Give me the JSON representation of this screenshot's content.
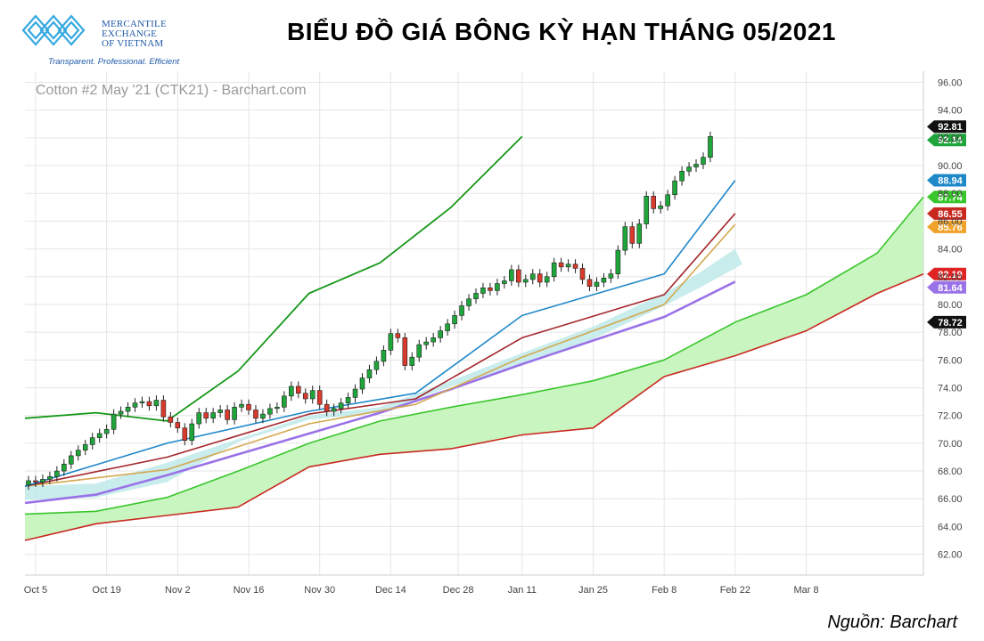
{
  "header": {
    "logo_line1": "MERCANTILE",
    "logo_line2": "EXCHANGE",
    "logo_line3": "OF VIETNAM",
    "logo_tagline": "Transparent. Professional. Efficient",
    "title": "BIỂU ĐỒ GIÁ BÔNG KỲ HẠN THÁNG 05/2021"
  },
  "source": "Nguồn: Barchart",
  "colors": {
    "up": "#1fa63a",
    "down": "#d93a2b",
    "band_fill": "#bfe9ea",
    "cloud_fill": "#c9f5c0",
    "ema_fast": "#1f88c9",
    "ema_mid": "#a3262b",
    "ema_slow": "#d4a84f",
    "sma_long": "#9a72e8",
    "span_a": "#39c62c",
    "span_b": "#c9281f",
    "lag": "#159818"
  },
  "chart_data": {
    "type": "candlestick",
    "title": "Cotton #2 May '21 (CTK21) - Barchart.com",
    "ylim": [
      60.5,
      96.8
    ],
    "y_ticks": [
      "96.00",
      "94.00",
      "92.00",
      "90.00",
      "88.00",
      "86.00",
      "84.00",
      "82.00",
      "80.00",
      "78.00",
      "76.00",
      "74.00",
      "72.00",
      "70.00",
      "68.00",
      "66.00",
      "64.00",
      "62.00"
    ],
    "x_ticks": [
      {
        "label": "Oct 5",
        "t": 1.5
      },
      {
        "label": "Oct 19",
        "t": 11.5
      },
      {
        "label": "Nov 2",
        "t": 21.5
      },
      {
        "label": "Nov 16",
        "t": 31.5
      },
      {
        "label": "Nov 30",
        "t": 41.5
      },
      {
        "label": "Dec 14",
        "t": 51.5
      },
      {
        "label": "Dec 28",
        "t": 61
      },
      {
        "label": "Jan 11",
        "t": 70
      },
      {
        "label": "Jan 25",
        "t": 80
      },
      {
        "label": "Feb 8",
        "t": 90
      },
      {
        "label": "Feb 22",
        "t": 100
      },
      {
        "label": "Mar 8",
        "t": 110
      }
    ],
    "t_range": [
      0,
      126.5
    ],
    "closes": [
      67.3,
      67.2,
      67.4,
      67.6,
      68.0,
      68.5,
      69.1,
      69.5,
      69.9,
      70.4,
      70.7,
      71.0,
      72.1,
      72.3,
      72.6,
      72.9,
      73.0,
      72.7,
      73.1,
      71.9,
      71.5,
      71.1,
      70.2,
      71.4,
      72.2,
      71.8,
      72.2,
      72.4,
      71.7,
      72.6,
      72.8,
      72.4,
      71.8,
      72.1,
      72.5,
      72.6,
      73.4,
      74.1,
      73.6,
      73.2,
      73.8,
      72.8,
      72.3,
      72.5,
      72.9,
      73.3,
      73.9,
      74.7,
      75.3,
      75.9,
      76.7,
      77.9,
      77.6,
      75.6,
      76.2,
      77.1,
      77.3,
      77.6,
      78.1,
      78.6,
      79.2,
      79.9,
      80.4,
      80.8,
      81.2,
      81.0,
      81.5,
      81.7,
      82.5,
      81.6,
      81.8,
      82.2,
      81.6,
      82.0,
      83.0,
      82.7,
      82.9,
      82.6,
      81.8,
      81.3,
      81.6,
      81.9,
      82.2,
      83.9,
      85.6,
      84.4,
      85.8,
      87.8,
      86.9,
      87.1,
      87.9,
      88.9,
      89.6,
      89.9,
      90.1,
      90.6,
      92.1
    ],
    "series": [
      {
        "name": "",
        "values": [
          [
            0,
            66.9
          ],
          [
            10,
            67.1
          ],
          [
            20,
            68.6
          ],
          [
            30,
            70.3
          ],
          [
            40,
            72.0
          ],
          [
            50,
            72.6
          ],
          [
            60,
            74.5
          ],
          [
            70,
            76.5
          ],
          [
            80,
            78.4
          ],
          [
            90,
            80.8
          ],
          [
            95,
            82.3
          ],
          [
            100,
            84.0
          ],
          [
            101,
            82.9
          ],
          [
            95,
            81.2
          ],
          [
            90,
            79.9
          ],
          [
            80,
            77.5
          ],
          [
            70,
            75.6
          ],
          [
            60,
            74.1
          ],
          [
            50,
            72.2
          ],
          [
            40,
            71.7
          ],
          [
            30,
            70.1
          ],
          [
            20,
            67.2
          ],
          [
            10,
            66.1
          ],
          [
            0,
            65.9
          ]
        ]
      },
      {
        "name": "",
        "values": [
          [
            0,
            66.9
          ],
          [
            20,
            70.0
          ],
          [
            40,
            72.3
          ],
          [
            55,
            73.6
          ],
          [
            70,
            79.2
          ],
          [
            90,
            82.2
          ],
          [
            100,
            88.94
          ]
        ]
      },
      {
        "name": "",
        "values": [
          [
            0,
            66.9
          ],
          [
            20,
            69.0
          ],
          [
            40,
            72.1
          ],
          [
            55,
            73.2
          ],
          [
            70,
            77.6
          ],
          [
            90,
            80.7
          ],
          [
            100,
            86.55
          ]
        ]
      },
      {
        "name": "",
        "values": [
          [
            0,
            66.9
          ],
          [
            20,
            68.1
          ],
          [
            40,
            71.4
          ],
          [
            55,
            72.8
          ],
          [
            70,
            76.2
          ],
          [
            90,
            80.0
          ],
          [
            100,
            85.76
          ]
        ]
      },
      {
        "name": "",
        "values": [
          [
            0,
            65.7
          ],
          [
            10,
            66.3
          ],
          [
            20,
            67.7
          ],
          [
            30,
            69.2
          ],
          [
            40,
            70.7
          ],
          [
            50,
            72.2
          ],
          [
            60,
            73.9
          ],
          [
            70,
            75.7
          ],
          [
            80,
            77.4
          ],
          [
            90,
            79.1
          ],
          [
            100,
            81.64
          ]
        ]
      },
      {
        "name": "",
        "values": [
          [
            0,
            64.9
          ],
          [
            10,
            65.1
          ],
          [
            20,
            66.1
          ],
          [
            30,
            68.0
          ],
          [
            40,
            70.0
          ],
          [
            50,
            71.6
          ],
          [
            60,
            72.6
          ],
          [
            70,
            73.5
          ],
          [
            80,
            74.5
          ],
          [
            90,
            76.0
          ],
          [
            100,
            78.72
          ],
          [
            110,
            80.7
          ],
          [
            120,
            83.7
          ],
          [
            126.5,
            87.74
          ]
        ]
      },
      {
        "name": "",
        "values": [
          [
            0,
            63.0
          ],
          [
            10,
            64.2
          ],
          [
            20,
            64.8
          ],
          [
            30,
            65.4
          ],
          [
            40,
            68.3
          ],
          [
            50,
            69.2
          ],
          [
            60,
            69.6
          ],
          [
            70,
            70.6
          ],
          [
            80,
            71.1
          ],
          [
            90,
            74.8
          ],
          [
            100,
            76.3
          ],
          [
            110,
            78.1
          ],
          [
            120,
            80.8
          ],
          [
            126.5,
            82.19
          ]
        ]
      },
      {
        "name": "",
        "values": [
          [
            0,
            71.8
          ],
          [
            10,
            72.2
          ],
          [
            20,
            71.6
          ],
          [
            30,
            75.2
          ],
          [
            40,
            80.8
          ],
          [
            50,
            83.0
          ],
          [
            60,
            87.0
          ],
          [
            70,
            92.1
          ]
        ]
      }
    ],
    "price_labels": [
      {
        "value": "92.81",
        "y": 92.81,
        "color": "#111111"
      },
      {
        "value": "92.14",
        "y": 92.14,
        "color": "#1fa63a"
      },
      {
        "value": "88.94",
        "y": 88.94,
        "color": "#1f88c9"
      },
      {
        "value": "87.74",
        "y": 87.74,
        "color": "#39c62c"
      },
      {
        "value": "86.55",
        "y": 86.55,
        "color": "#c9281f"
      },
      {
        "value": "85.76",
        "y": 85.76,
        "color": "#f0a32a"
      },
      {
        "value": "82.19",
        "y": 82.19,
        "color": "#e02424"
      },
      {
        "value": "81.64",
        "y": 81.64,
        "color": "#9a72e8"
      },
      {
        "value": "78.72",
        "y": 78.72,
        "color": "#111111"
      }
    ]
  }
}
